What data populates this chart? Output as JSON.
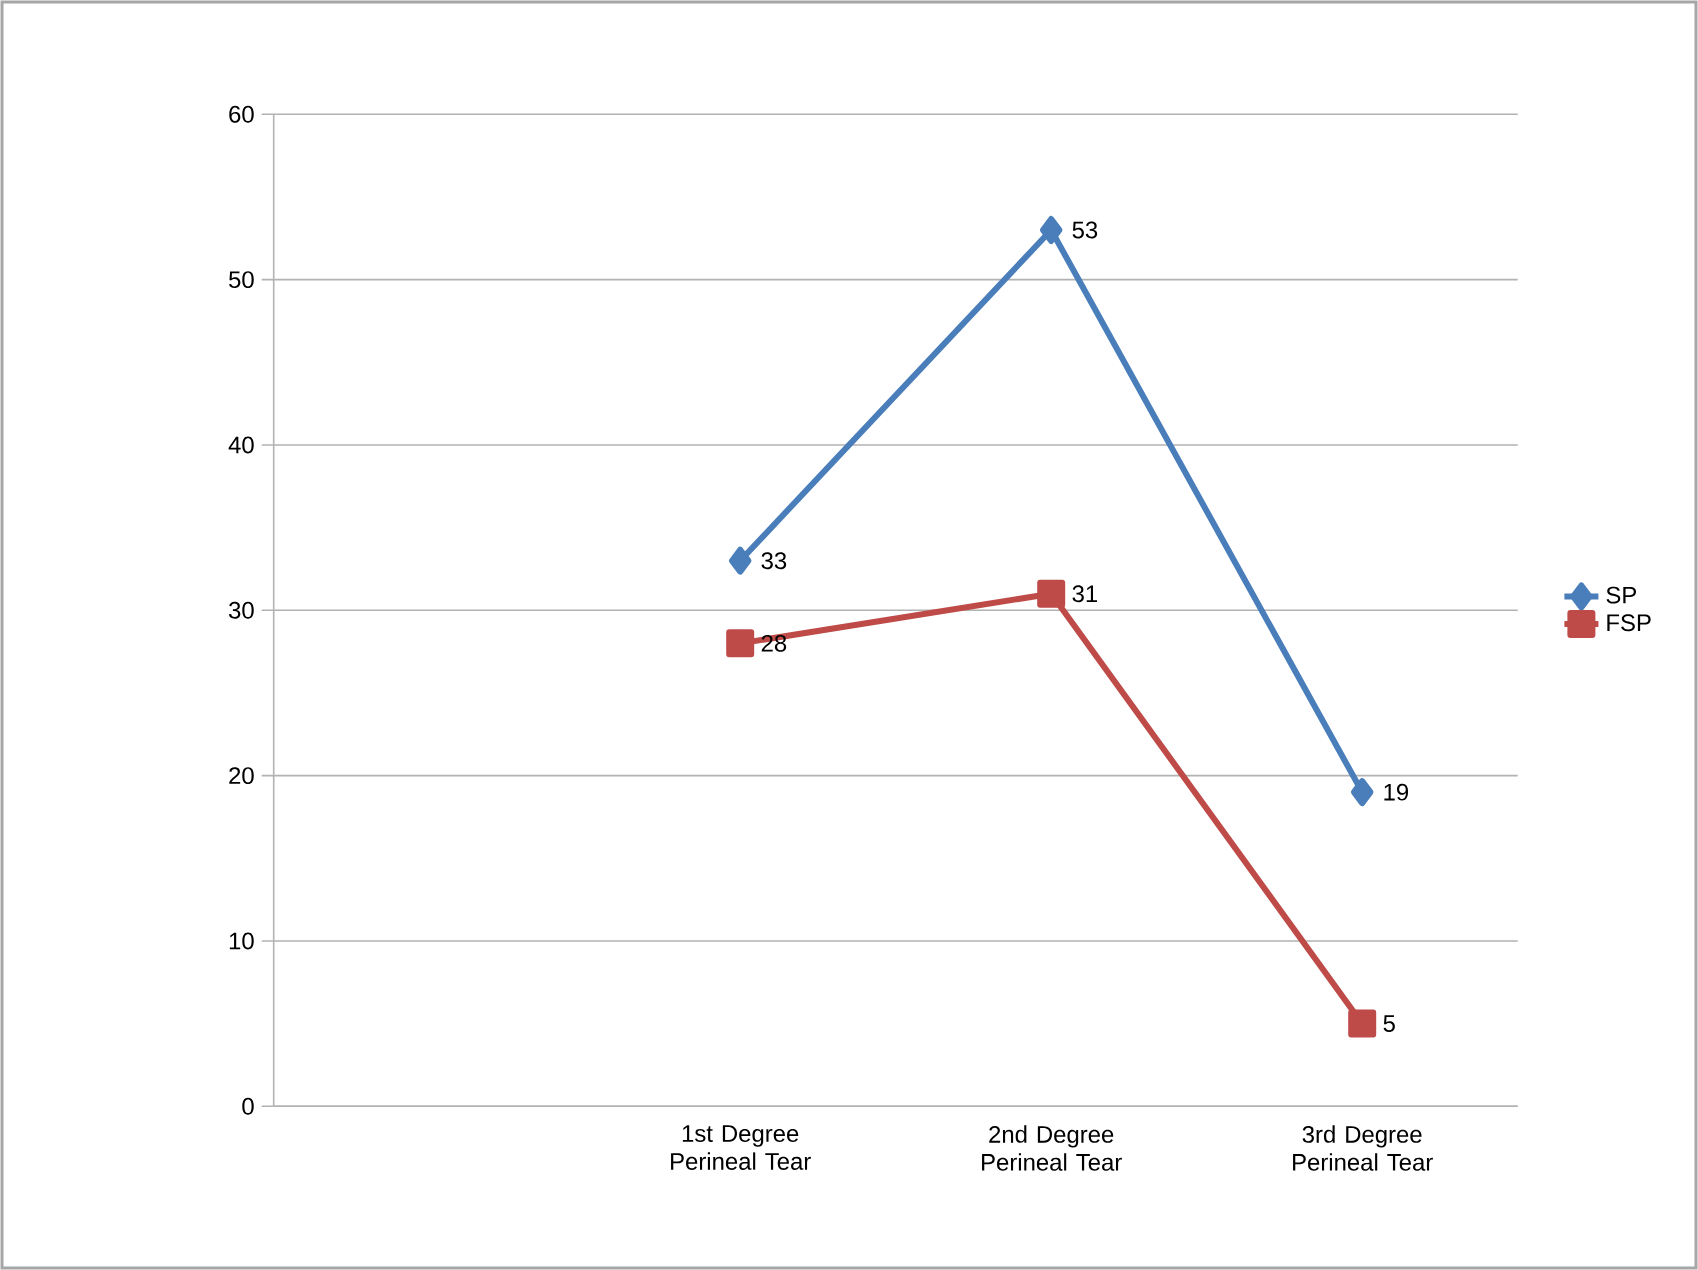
{
  "chart_data": {
    "type": "line",
    "categories": [
      null,
      "1st Degree Perineal Tear",
      "2nd Degree Perineal Tear",
      "3rd Degree Perineal Tear"
    ],
    "series": [
      {
        "name": "SP",
        "color": "#4a7ebb",
        "marker": "diamond",
        "values": [
          null,
          33,
          53,
          19
        ]
      },
      {
        "name": "FSP",
        "color": "#be4b48",
        "marker": "square",
        "values": [
          null,
          28,
          31,
          5
        ]
      }
    ],
    "ylim": [
      0,
      60
    ],
    "yticks": [
      0,
      10,
      20,
      30,
      40,
      50,
      60
    ],
    "grid": "y",
    "legend": "right",
    "data_labels": true,
    "line_style": "solid"
  }
}
